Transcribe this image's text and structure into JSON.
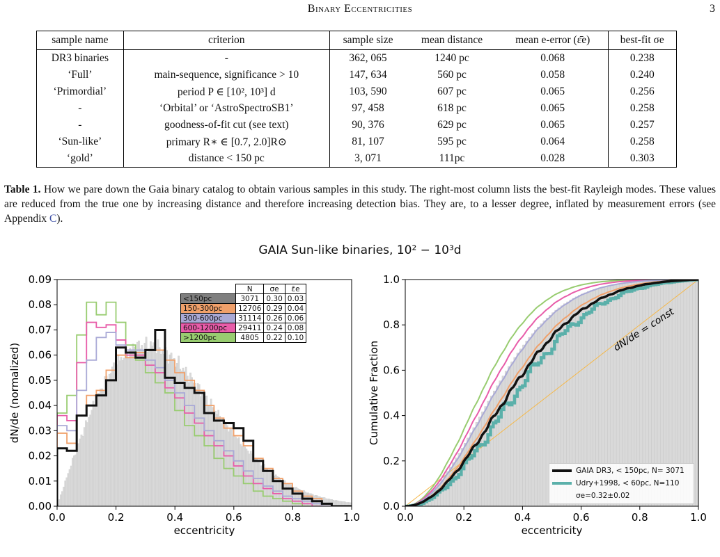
{
  "header": {
    "running_title": "Binary Eccentricities",
    "page_number": "3"
  },
  "table": {
    "headers": [
      "sample name",
      "criterion",
      "sample size",
      "mean distance",
      "mean e-error (ε̄e)",
      "best-fit σe"
    ],
    "rows": [
      [
        "DR3 binaries",
        "-",
        "362, 065",
        "1240 pc",
        "0.068",
        "0.238"
      ],
      [
        "‘Full’",
        "main-sequence, significance > 10",
        "147, 634",
        "560 pc",
        "0.058",
        "0.240"
      ],
      [
        "‘Primordial’",
        "period P ∈ [10², 10³] d",
        "103, 590",
        "607 pc",
        "0.065",
        "0.256"
      ],
      [
        "-",
        "‘Orbital’ or ‘AstroSpectroSB1’",
        "97, 458",
        "618 pc",
        "0.065",
        "0.258"
      ],
      [
        "-",
        "goodness-of-fit cut (see text)",
        "90, 376",
        "629 pc",
        "0.065",
        "0.257"
      ],
      [
        "‘Sun-like’",
        "primary R∗ ∈ [0.7, 2.0]R⊙",
        "81, 107",
        "595 pc",
        "0.064",
        "0.258"
      ],
      [
        "‘gold’",
        "distance < 150 pc",
        "3, 071",
        "111pc",
        "0.028",
        "0.303"
      ]
    ]
  },
  "caption": {
    "label": "Table 1.",
    "text_1": " How we pare down the Gaia binary catalog to obtain various samples in this study. The right-most column lists the best-fit Rayleigh modes. These values are reduced from the true one by increasing distance and therefore increasing detection bias. They are, to a lesser degree, inflated by measurement errors (see Appendix ",
    "link": "C",
    "text_2": ")."
  },
  "figure": {
    "title": "GAIA Sun-like binaries, 10² − 10³d",
    "colors": {
      "lt150": "#7f7f7f",
      "p150_300": "#f0a06a",
      "p300_600": "#a9a9d6",
      "p600_1200": "#e85ca9",
      "gt1200": "#98cc70",
      "gold": "#111111",
      "udry": "#5bb0aa",
      "const": "#f5b84a",
      "bg_hist": "#d9d9d9"
    },
    "legend_table": {
      "headers": [
        "",
        "N",
        "σe",
        "ε̄e"
      ],
      "rows": [
        {
          "label": "<150pc",
          "N": "3071",
          "sigma": "0.30",
          "eps": "0.03",
          "color": "#7f7f7f"
        },
        {
          "label": "150-300pc",
          "N": "12706",
          "sigma": "0.29",
          "eps": "0.04",
          "color": "#f0a06a"
        },
        {
          "label": "300-600pc",
          "N": "31114",
          "sigma": "0.26",
          "eps": "0.06",
          "color": "#a9a9d6"
        },
        {
          "label": "600-1200pc",
          "N": "29411",
          "sigma": "0.24",
          "eps": "0.08",
          "color": "#e85ca9"
        },
        {
          "label": ">1200pc",
          "N": "4805",
          "sigma": "0.22",
          "eps": "0.10",
          "color": "#98cc70"
        }
      ]
    },
    "cum_legend": {
      "gold": "GAIA DR3, < 150pc, N= 3071",
      "udry": "Udry+1998, < 60pc, N=110",
      "sigma": "σe=0.32±0.02"
    }
  },
  "chart_data": [
    {
      "type": "line",
      "title": "",
      "xlabel": "eccentricity",
      "ylabel": "dN/de (normalized)",
      "xlim": [
        0,
        1.0
      ],
      "ylim": [
        0,
        0.09
      ],
      "xticks": [
        "0.0",
        "0.2",
        "0.4",
        "0.6",
        "0.8",
        "1.0"
      ],
      "yticks": [
        "0.00",
        "0.01",
        "0.02",
        "0.03",
        "0.04",
        "0.05",
        "0.06",
        "0.07",
        "0.08",
        "0.09"
      ],
      "bin_width": 0.0333,
      "series": [
        {
          "name": "<150pc",
          "key": "gold",
          "values": [
            0.023,
            0.022,
            0.036,
            0.04,
            0.044,
            0.05,
            0.063,
            0.061,
            0.059,
            0.062,
            0.07,
            0.051,
            0.049,
            0.047,
            0.045,
            0.037,
            0.034,
            0.033,
            0.031,
            0.026,
            0.018,
            0.014,
            0.01,
            0.007,
            0.005,
            0.003,
            0.002,
            0.001,
            0.0,
            0.0
          ]
        },
        {
          "name": "150-300pc",
          "key": "p150_300",
          "values": [
            0.029,
            0.025,
            0.036,
            0.044,
            0.046,
            0.054,
            0.06,
            0.059,
            0.061,
            0.062,
            0.062,
            0.058,
            0.053,
            0.05,
            0.046,
            0.04,
            0.035,
            0.031,
            0.028,
            0.024,
            0.019,
            0.015,
            0.011,
            0.009,
            0.006,
            0.004,
            0.003,
            0.001,
            0.0,
            0.0
          ]
        },
        {
          "name": "300-600pc",
          "key": "p300_600",
          "values": [
            0.032,
            0.03,
            0.046,
            0.058,
            0.067,
            0.069,
            0.064,
            0.062,
            0.062,
            0.058,
            0.055,
            0.05,
            0.045,
            0.04,
            0.035,
            0.03,
            0.026,
            0.022,
            0.018,
            0.014,
            0.011,
            0.008,
            0.006,
            0.004,
            0.003,
            0.002,
            0.001,
            0.0,
            0.0,
            0.0
          ]
        },
        {
          "name": "600-1200pc",
          "key": "p600_1200",
          "values": [
            0.036,
            0.034,
            0.057,
            0.073,
            0.071,
            0.072,
            0.066,
            0.06,
            0.06,
            0.056,
            0.053,
            0.047,
            0.043,
            0.037,
            0.033,
            0.028,
            0.024,
            0.02,
            0.016,
            0.012,
            0.009,
            0.007,
            0.005,
            0.003,
            0.002,
            0.001,
            0.0,
            0.0,
            0.0,
            0.0
          ]
        },
        {
          "name": ">1200pc",
          "key": "gt1200",
          "values": [
            0.037,
            0.044,
            0.068,
            0.081,
            0.076,
            0.081,
            0.073,
            0.064,
            0.058,
            0.053,
            0.049,
            0.045,
            0.038,
            0.032,
            0.028,
            0.024,
            0.019,
            0.015,
            0.012,
            0.009,
            0.006,
            0.004,
            0.003,
            0.002,
            0.001,
            0.0,
            0.0,
            0.0,
            0.0,
            0.0
          ]
        }
      ],
      "background": {
        "name": "",
        "mode": 0.3,
        "peak": 0.064
      }
    },
    {
      "type": "line",
      "title": "",
      "xlabel": "eccentricity",
      "ylabel": "Cumulative Fraction",
      "xlim": [
        0,
        1.0
      ],
      "ylim": [
        0,
        1.0
      ],
      "xticks": [
        "0.0",
        "0.2",
        "0.4",
        "0.6",
        "0.8",
        "1.0"
      ],
      "yticks": [
        "0.0",
        "0.2",
        "0.4",
        "0.6",
        "0.8",
        "1.0"
      ],
      "series": [
        {
          "name": "GAIA DR3, < 150pc, N= 3071",
          "key": "gold",
          "sigma": 0.303
        },
        {
          "name": "Udry+1998, < 60pc, N=110",
          "key": "udry",
          "sigma": 0.32
        },
        {
          "name": "150-300pc",
          "key": "p150_300",
          "sigma": 0.29
        },
        {
          "name": "300-600pc",
          "key": "p300_600",
          "sigma": 0.26
        },
        {
          "name": "600-1200pc",
          "key": "p600_1200",
          "sigma": 0.24
        },
        {
          "name": ">1200pc",
          "key": "gt1200",
          "sigma": 0.22
        },
        {
          "name": "",
          "key": "const",
          "sigma": 0
        }
      ],
      "annotation": "dN/de = const"
    }
  ]
}
